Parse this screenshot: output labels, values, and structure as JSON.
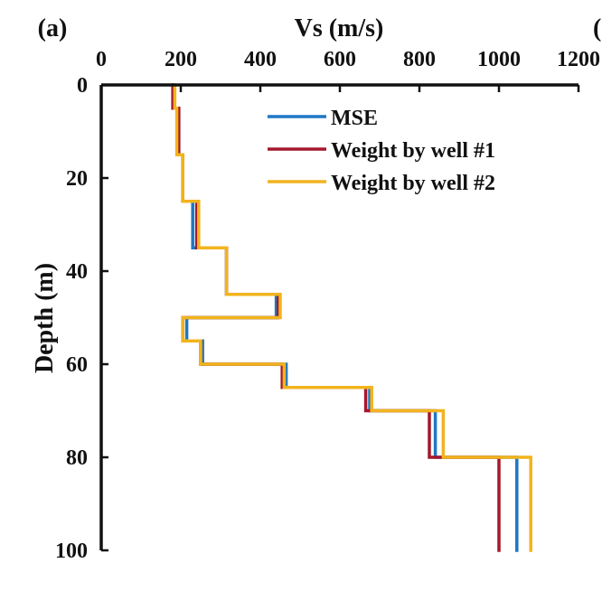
{
  "chart_data": {
    "type": "line",
    "panel_label": "(a)",
    "panel_label_right_partial": "(",
    "xlabel": "Vs (m/s)",
    "ylabel": "Depth (m)",
    "x_axis_position": "top",
    "y_axis_inverted": true,
    "xlim": [
      0,
      1200
    ],
    "ylim": [
      0,
      100
    ],
    "x_ticks": [
      0,
      200,
      400,
      600,
      800,
      1000,
      1200
    ],
    "y_ticks": [
      0,
      20,
      40,
      60,
      80,
      100
    ],
    "x_tick_labels": [
      "0",
      "200",
      "400",
      "600",
      "800",
      "1000",
      "1200"
    ],
    "y_tick_labels": [
      "0",
      "20",
      "40",
      "60",
      "80",
      "100"
    ],
    "grid": false,
    "legend_position": "top-right",
    "series": [
      {
        "name": "MSE",
        "color": "#1f77c4",
        "points": [
          [
            180,
            0
          ],
          [
            180,
            5
          ],
          [
            195,
            5
          ],
          [
            195,
            15
          ],
          [
            205,
            15
          ],
          [
            205,
            25
          ],
          [
            230,
            25
          ],
          [
            230,
            35
          ],
          [
            315,
            35
          ],
          [
            315,
            45
          ],
          [
            440,
            45
          ],
          [
            440,
            50
          ],
          [
            215,
            50
          ],
          [
            215,
            55
          ],
          [
            255,
            55
          ],
          [
            255,
            60
          ],
          [
            465,
            60
          ],
          [
            465,
            65
          ],
          [
            675,
            65
          ],
          [
            675,
            70
          ],
          [
            840,
            70
          ],
          [
            840,
            80
          ],
          [
            1045,
            80
          ],
          [
            1045,
            100
          ]
        ]
      },
      {
        "name": "Weight by well #1",
        "color": "#a4182c",
        "points": [
          [
            180,
            0
          ],
          [
            180,
            5
          ],
          [
            195,
            5
          ],
          [
            195,
            15
          ],
          [
            205,
            15
          ],
          [
            205,
            25
          ],
          [
            240,
            25
          ],
          [
            240,
            35
          ],
          [
            315,
            35
          ],
          [
            315,
            45
          ],
          [
            445,
            45
          ],
          [
            445,
            50
          ],
          [
            205,
            50
          ],
          [
            205,
            55
          ],
          [
            250,
            55
          ],
          [
            250,
            60
          ],
          [
            455,
            60
          ],
          [
            455,
            65
          ],
          [
            665,
            65
          ],
          [
            665,
            70
          ],
          [
            825,
            70
          ],
          [
            825,
            80
          ],
          [
            1000,
            80
          ],
          [
            1000,
            100
          ]
        ]
      },
      {
        "name": "Weight by well #2",
        "color": "#f2b41d",
        "points": [
          [
            185,
            0
          ],
          [
            185,
            5
          ],
          [
            190,
            5
          ],
          [
            190,
            15
          ],
          [
            205,
            15
          ],
          [
            205,
            25
          ],
          [
            245,
            25
          ],
          [
            245,
            35
          ],
          [
            315,
            35
          ],
          [
            315,
            45
          ],
          [
            450,
            45
          ],
          [
            450,
            50
          ],
          [
            205,
            50
          ],
          [
            205,
            55
          ],
          [
            250,
            55
          ],
          [
            250,
            60
          ],
          [
            460,
            60
          ],
          [
            460,
            65
          ],
          [
            680,
            65
          ],
          [
            680,
            70
          ],
          [
            860,
            70
          ],
          [
            860,
            80
          ],
          [
            1080,
            80
          ],
          [
            1080,
            100
          ]
        ]
      }
    ]
  }
}
